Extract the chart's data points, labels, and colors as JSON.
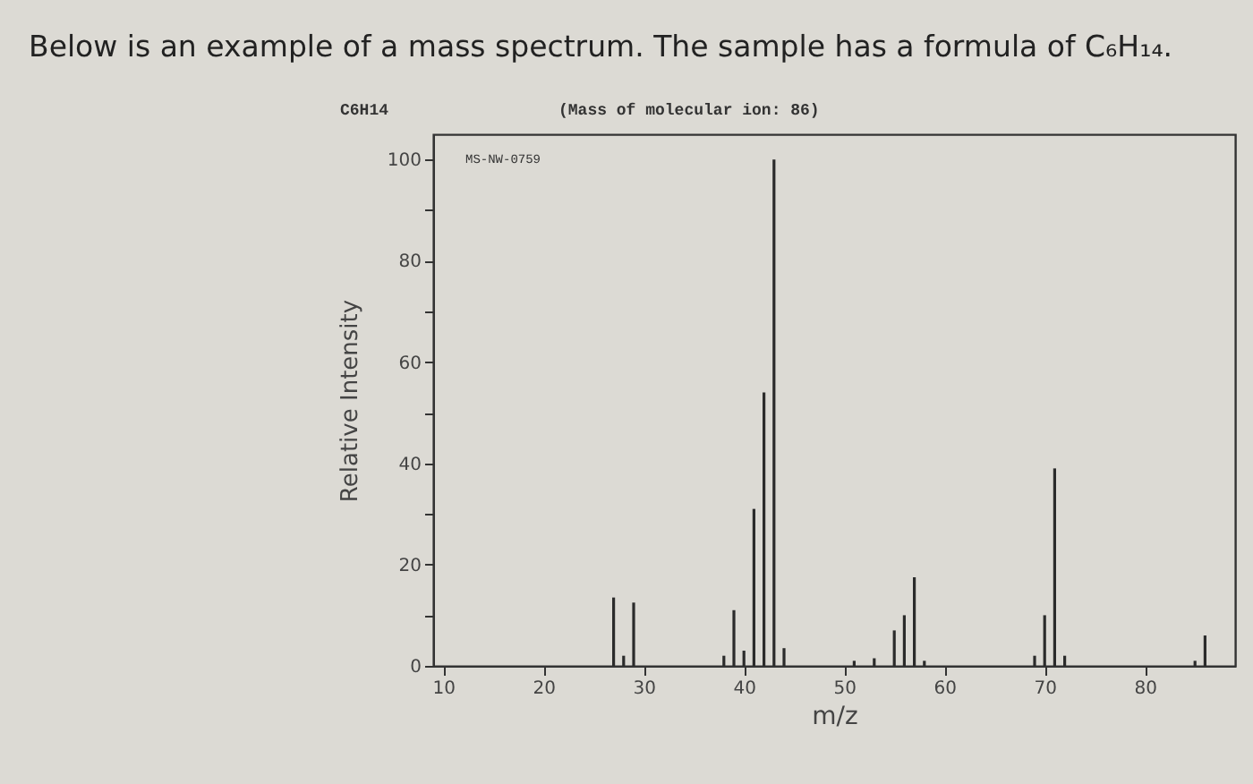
{
  "chart_data": {
    "type": "bar",
    "title": "Below is an example of a mass spectrum. The sample has a formula of C₆H₁₄.",
    "subtitle": "C6H14",
    "annotations": [
      "(Mass of molecular ion:     86)",
      "MS-NW-0759"
    ],
    "xlabel": "m/z",
    "ylabel": "Relative Intensity",
    "x": [
      27,
      28,
      29,
      38,
      39,
      40,
      41,
      42,
      43,
      44,
      51,
      53,
      55,
      56,
      57,
      58,
      69,
      70,
      71,
      72,
      85,
      86
    ],
    "values": [
      13.5,
      2,
      12.5,
      2,
      11,
      3,
      31,
      54,
      100,
      3.5,
      1,
      1.5,
      7,
      10,
      17.5,
      1,
      2,
      10,
      39,
      2,
      1,
      6
    ],
    "color": "#2b2b2b",
    "xlim": [
      9,
      89
    ],
    "xticks": [
      10,
      20,
      30,
      40,
      50,
      60,
      70,
      80
    ],
    "ylim": [
      0,
      105
    ],
    "yticks": [
      0,
      {
        "value": 10,
        "label": null
      },
      20,
      {
        "value": 30,
        "label": null
      },
      40,
      {
        "value": 50,
        "label": null
      },
      60,
      {
        "value": 70,
        "label": null
      },
      80,
      {
        "value": 90,
        "label": null
      },
      100
    ],
    "grid": false
  }
}
